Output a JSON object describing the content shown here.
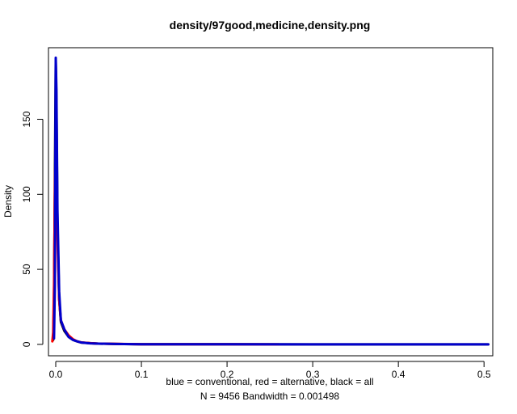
{
  "chart_data": {
    "type": "line",
    "title": "density/97good,medicine,density.png",
    "xlabel": "blue = conventional, red = alternative, black = all",
    "xsub": "N = 9456   Bandwidth = 0.001498",
    "ylabel": "Density",
    "xlim": [
      -0.0085,
      0.5102
    ],
    "ylim": [
      -7.6,
      197.7
    ],
    "x_ticks": [
      0.0,
      0.1,
      0.2,
      0.3,
      0.4,
      0.5
    ],
    "x_tick_labels": [
      "0.0",
      "0.1",
      "0.2",
      "0.3",
      "0.4",
      "0.5"
    ],
    "y_ticks": [
      0,
      50,
      100,
      150
    ],
    "y_tick_labels": [
      "0",
      "50",
      "100",
      "150"
    ],
    "grid": false,
    "series": [
      {
        "color": "#000000",
        "x": [
          -0.003,
          -0.002,
          -0.001,
          0.0,
          0.0008,
          0.002,
          0.004,
          0.006,
          0.01,
          0.015,
          0.02,
          0.025,
          0.03,
          0.04,
          0.05,
          0.07,
          0.1,
          0.2,
          0.3,
          0.4,
          0.505
        ],
        "y": [
          3,
          30,
          110,
          188,
          160,
          80,
          30,
          15,
          9,
          5,
          3,
          2,
          1.2,
          0.8,
          0.5,
          0.3,
          0.1,
          0.05,
          0.02,
          0.01,
          0
        ]
      },
      {
        "color": "#ff0000",
        "x": [
          -0.004,
          -0.003,
          -0.002,
          -0.001,
          0.0,
          0.0008,
          0.002,
          0.004,
          0.006,
          0.01,
          0.015,
          0.02,
          0.025,
          0.03,
          0.04,
          0.05,
          0.1,
          0.2,
          0.26
        ],
        "y": [
          2,
          8,
          40,
          100,
          139,
          120,
          70,
          30,
          16,
          10,
          6,
          3.5,
          2,
          1.3,
          0.8,
          0.5,
          0.1,
          0.05,
          0
        ]
      },
      {
        "color": "#0000cc",
        "x": [
          -0.002,
          -0.001,
          0.0,
          0.0008,
          0.002,
          0.004,
          0.006,
          0.01,
          0.015,
          0.02,
          0.025,
          0.03,
          0.04,
          0.05,
          0.07,
          0.1,
          0.2,
          0.3,
          0.4,
          0.505
        ],
        "y": [
          4,
          40,
          191,
          170,
          90,
          35,
          16,
          10,
          5,
          3,
          2,
          1.2,
          0.7,
          0.5,
          0.3,
          0.1,
          0.05,
          0.02,
          0.01,
          0
        ]
      }
    ]
  }
}
